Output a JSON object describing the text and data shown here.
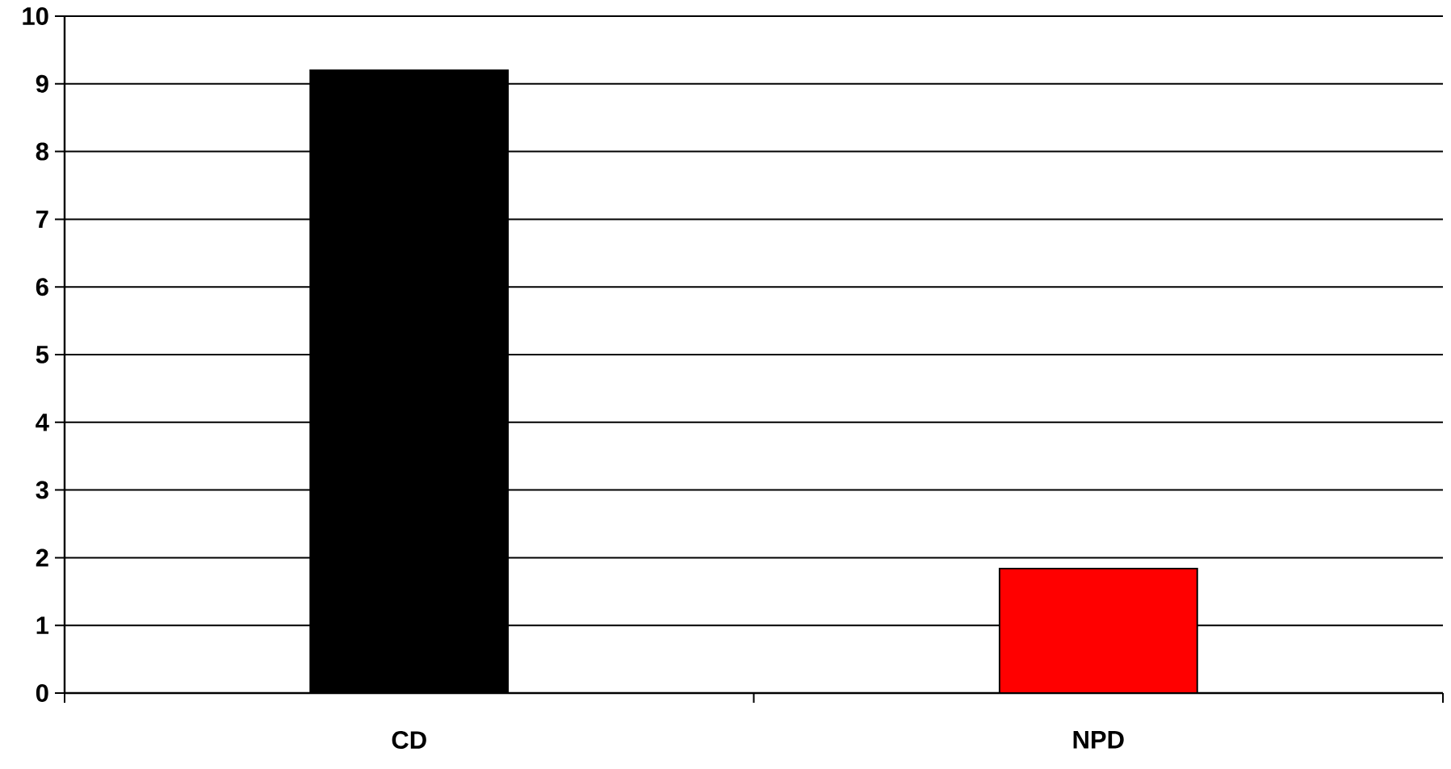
{
  "chart_data": {
    "type": "bar",
    "categories": [
      "CD",
      "NPD"
    ],
    "values": [
      9.2,
      1.84
    ],
    "colors": [
      "#000000",
      "#ff0000"
    ],
    "ylim": [
      0,
      10
    ],
    "yticks": [
      0,
      1,
      2,
      3,
      4,
      5,
      6,
      7,
      8,
      9,
      10
    ],
    "grid": "y"
  }
}
